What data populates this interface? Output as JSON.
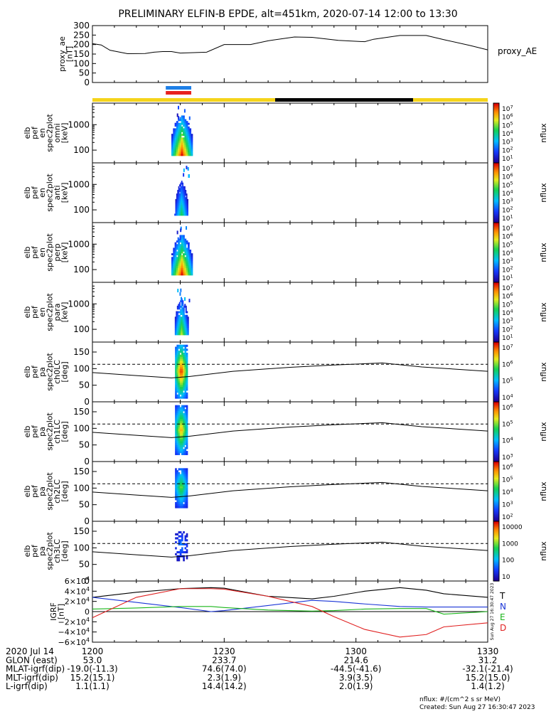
{
  "title": "PRELIMINARY ELFIN-B EPDE, alt=451km, 2020-07-14 12:00 to 13:30",
  "proxy_ae": {
    "ylabel": [
      "proxy_ae",
      "[nT]"
    ],
    "legend": "proxy_AE",
    "yticks": [
      "300",
      "250",
      "200",
      "150",
      "100",
      "50",
      "0"
    ],
    "ylim": [
      0,
      300
    ],
    "t": [
      0,
      2,
      4,
      8,
      12,
      14,
      16,
      18,
      20,
      26,
      30,
      32,
      36,
      40,
      46,
      50,
      56,
      62,
      64,
      70,
      76,
      80,
      86,
      90
    ],
    "v": [
      205,
      198,
      170,
      152,
      153,
      160,
      163,
      163,
      155,
      160,
      200,
      200,
      200,
      220,
      240,
      238,
      222,
      215,
      228,
      248,
      248,
      226,
      195,
      172
    ]
  },
  "science_zone_bars": [
    {
      "color": "#1e7fe6",
      "t0": 16.7,
      "t1": 22.5
    },
    {
      "color": "#e8231f",
      "t0": 16.7,
      "t1": 22.5
    }
  ],
  "sunlight_bar": [
    {
      "color": "#f5d41a",
      "t0": 0,
      "t1": 41.6
    },
    {
      "color": "#000000",
      "t0": 41.6,
      "t1": 73.0
    },
    {
      "color": "#f5d41a",
      "t0": 73.0,
      "t1": 90
    }
  ],
  "energy_panels": [
    {
      "ylabel": [
        "elb",
        "pef",
        "en",
        "spec2plot",
        "omni",
        "[keV]"
      ],
      "cb_label": "nflux",
      "cb_ticks": [
        "10^7",
        "10^6",
        "10^5",
        "10^4",
        "10^3",
        "10^2",
        "10^1"
      ],
      "yticks": [
        "1000",
        "100"
      ],
      "peak": 1.0,
      "width": 1.0
    },
    {
      "ylabel": [
        "elb",
        "pef",
        "en",
        "spec2plot",
        "anti",
        "[keV]"
      ],
      "cb_label": "nflux",
      "cb_ticks": [
        "10^7",
        "10^6",
        "10^5",
        "10^4",
        "10^3",
        "10^2",
        "10^1"
      ],
      "yticks": [
        "1000",
        "100"
      ],
      "peak": 0.55,
      "width": 0.6
    },
    {
      "ylabel": [
        "elb",
        "pef",
        "en",
        "spec2plot",
        "perp",
        "[keV]"
      ],
      "cb_label": "nflux",
      "cb_ticks": [
        "10^7",
        "10^6",
        "10^5",
        "10^4",
        "10^3",
        "10^2",
        "10^1"
      ],
      "yticks": [
        "1000",
        "100"
      ],
      "peak": 1.0,
      "width": 1.0
    },
    {
      "ylabel": [
        "elb",
        "pef",
        "en",
        "spec2plot",
        "para",
        "[keV]"
      ],
      "cb_label": "nflux",
      "cb_ticks": [
        "10^7",
        "10^6",
        "10^5",
        "10^4",
        "10^3",
        "10^2",
        "10^1"
      ],
      "yticks": [
        "1000",
        "100"
      ],
      "peak": 0.7,
      "width": 0.65
    }
  ],
  "pitch_panels": [
    {
      "ylabel": [
        "elb",
        "pef",
        "pa",
        "spec2plot",
        "ch0LC",
        "[deg]"
      ],
      "cb_label": "nflux",
      "cb_ticks": [
        "10^7",
        "10^6",
        "10^5",
        "10^4"
      ],
      "yticks": [
        "150",
        "100",
        "50",
        "0"
      ],
      "ylim": [
        0,
        180
      ],
      "extent": [
        10,
        170
      ],
      "peak": 1.0
    },
    {
      "ylabel": [
        "elb",
        "pef",
        "pa",
        "spec2plot",
        "ch1LC",
        "[deg]"
      ],
      "cb_label": "nflux",
      "cb_ticks": [
        "10^6",
        "10^5",
        "10^4",
        "10^3"
      ],
      "yticks": [
        "150",
        "100",
        "50",
        "0"
      ],
      "ylim": [
        0,
        180
      ],
      "extent": [
        20,
        165
      ],
      "peak": 0.85
    },
    {
      "ylabel": [
        "elb",
        "pef",
        "pa",
        "spec2plot",
        "ch2LC",
        "[deg]"
      ],
      "cb_label": "nflux",
      "cb_ticks": [
        "10^6",
        "10^5",
        "10^4",
        "10^3",
        "10^2"
      ],
      "yticks": [
        "150",
        "100",
        "50",
        "0"
      ],
      "ylim": [
        0,
        180
      ],
      "extent": [
        40,
        160
      ],
      "peak": 0.65
    },
    {
      "ylabel": [
        "elb",
        "pef",
        "pa",
        "spec2plot",
        "ch3LC",
        "[deg]"
      ],
      "cb_label": "nflux",
      "cb_ticks": [
        "10000",
        "1000",
        "100",
        "10"
      ],
      "yticks": [
        "150",
        "100",
        "50",
        "0"
      ],
      "ylim": [
        0,
        180
      ],
      "extent": [
        60,
        150
      ],
      "peak": 0.3
    }
  ],
  "loss_cone": {
    "t": [
      0,
      10,
      18,
      22,
      32,
      45,
      55,
      66,
      75,
      90
    ],
    "lc": [
      88,
      79,
      72,
      76,
      92,
      104,
      111,
      117,
      105,
      92
    ],
    "alc": 113
  },
  "igrf": {
    "ylabel": [
      "IGRF",
      "[nT]"
    ],
    "ylim": [
      -60000,
      60000
    ],
    "yticks": [
      "6×10^4",
      "4×10^4",
      "2×10^4",
      "0",
      "−2×10^4",
      "−4×10^4",
      "−6×10^4"
    ],
    "legend": [
      {
        "label": "T",
        "color": "#000000"
      },
      {
        "label": "N",
        "color": "#1a35d6"
      },
      {
        "label": "E",
        "color": "#19b519"
      },
      {
        "label": "D",
        "color": "#e02020"
      }
    ],
    "t": [
      0,
      10,
      20,
      27,
      30,
      40,
      50,
      55,
      62,
      70,
      76,
      80,
      90
    ],
    "T": [
      28000,
      38000,
      45000,
      47000,
      46000,
      30000,
      25000,
      30000,
      40000,
      47000,
      42000,
      35000,
      28000
    ],
    "N": [
      28000,
      18000,
      8000,
      0,
      2000,
      12000,
      22000,
      20000,
      15000,
      10000,
      9000,
      9000,
      9000
    ],
    "E": [
      5000,
      7000,
      10000,
      10000,
      8000,
      3000,
      1000,
      2000,
      5000,
      6000,
      6000,
      -5000,
      0
    ],
    "D": [
      -12000,
      28000,
      45000,
      45000,
      44000,
      30000,
      10000,
      -10000,
      -35000,
      -50000,
      -45000,
      -30000,
      -22000
    ],
    "side_stamp": "Sun Aug 27 16:30:47 2023"
  },
  "time_axis": {
    "ticks": [
      {
        "t": 0,
        "label": "1200"
      },
      {
        "t": 30,
        "label": "1230"
      },
      {
        "t": 60,
        "label": "1300"
      },
      {
        "t": 90,
        "label": "1330"
      }
    ]
  },
  "ephemeris": {
    "rows": [
      {
        "label": "2020 Jul 14",
        "values": [
          "1200",
          "1230",
          "1300",
          "1330"
        ]
      },
      {
        "label": "GLON (east)",
        "values": [
          "53.0",
          "233.7",
          "214.6",
          "31.2"
        ]
      },
      {
        "label": "MLAT-igrf(dip)",
        "values": [
          "-19.0(-11.3)",
          "74.6(74.0)",
          "-44.5(-41.6)",
          "-32.1(-21.4)"
        ]
      },
      {
        "label": "MLT-igrf(dip)",
        "values": [
          "15.2(15.1)",
          "2.3(1.9)",
          "3.9(3.5)",
          "15.2(15.0)"
        ]
      },
      {
        "label": "L-igrf(dip)",
        "values": [
          "1.1(1.1)",
          "14.4(14.2)",
          "2.0(1.9)",
          "1.4(1.2)"
        ]
      }
    ]
  },
  "footer": {
    "units": "nflux: #/(cm^2 s sr MeV)",
    "created": "Created: Sun Aug 27 16:30:47 2023"
  },
  "chart_data": [
    {
      "type": "line",
      "title": "PRELIMINARY ELFIN-B EPDE, alt=451km, 2020-07-14 12:00 to 13:30",
      "ylabel": "proxy_ae [nT]",
      "ylim": [
        0,
        300
      ],
      "series": [
        {
          "name": "proxy_AE",
          "x_minutes_after_1200": [
            0,
            2,
            4,
            8,
            12,
            14,
            16,
            18,
            20,
            26,
            30,
            32,
            36,
            40,
            46,
            50,
            56,
            62,
            64,
            70,
            76,
            80,
            86,
            90
          ],
          "values": [
            205,
            198,
            170,
            152,
            153,
            160,
            163,
            163,
            155,
            160,
            200,
            200,
            200,
            220,
            240,
            238,
            222,
            215,
            228,
            248,
            248,
            226,
            195,
            172
          ]
        }
      ]
    },
    {
      "type": "heatmap",
      "ylabel": "elb pef en spec2plot omni [keV]",
      "colorbar": "nflux",
      "scale": "log"
    },
    {
      "type": "heatmap",
      "ylabel": "elb pef en spec2plot anti [keV]",
      "colorbar": "nflux",
      "scale": "log"
    },
    {
      "type": "heatmap",
      "ylabel": "elb pef en spec2plot perp [keV]",
      "colorbar": "nflux",
      "scale": "log"
    },
    {
      "type": "heatmap",
      "ylabel": "elb pef en spec2plot para [keV]",
      "colorbar": "nflux",
      "scale": "log"
    },
    {
      "type": "heatmap",
      "ylabel": "elb pef pa spec2plot ch0LC [deg]",
      "colorbar": "nflux",
      "ylim": [
        0,
        180
      ]
    },
    {
      "type": "heatmap",
      "ylabel": "elb pef pa spec2plot ch1LC [deg]",
      "colorbar": "nflux",
      "ylim": [
        0,
        180
      ]
    },
    {
      "type": "heatmap",
      "ylabel": "elb pef pa spec2plot ch2LC [deg]",
      "colorbar": "nflux",
      "ylim": [
        0,
        180
      ]
    },
    {
      "type": "heatmap",
      "ylabel": "elb pef pa spec2plot ch3LC [deg]",
      "colorbar": "nflux",
      "ylim": [
        0,
        180
      ]
    },
    {
      "type": "line",
      "ylabel": "IGRF [nT]",
      "ylim": [
        -60000,
        60000
      ],
      "series": [
        {
          "name": "T",
          "x_minutes_after_1200": [
            0,
            10,
            20,
            27,
            30,
            40,
            50,
            55,
            62,
            70,
            76,
            80,
            90
          ],
          "values": [
            28000,
            38000,
            45000,
            47000,
            46000,
            30000,
            25000,
            30000,
            40000,
            47000,
            42000,
            35000,
            28000
          ]
        },
        {
          "name": "N",
          "x_minutes_after_1200": [
            0,
            10,
            20,
            27,
            30,
            40,
            50,
            55,
            62,
            70,
            76,
            80,
            90
          ],
          "values": [
            28000,
            18000,
            8000,
            0,
            2000,
            12000,
            22000,
            20000,
            15000,
            10000,
            9000,
            9000,
            9000
          ]
        },
        {
          "name": "E",
          "x_minutes_after_1200": [
            0,
            10,
            20,
            27,
            30,
            40,
            50,
            55,
            62,
            70,
            76,
            80,
            90
          ],
          "values": [
            5000,
            7000,
            10000,
            10000,
            8000,
            3000,
            1000,
            2000,
            5000,
            6000,
            6000,
            -5000,
            0
          ]
        },
        {
          "name": "D",
          "x_minutes_after_1200": [
            0,
            10,
            20,
            27,
            30,
            40,
            50,
            55,
            62,
            70,
            76,
            80,
            90
          ],
          "values": [
            -12000,
            28000,
            45000,
            45000,
            44000,
            30000,
            10000,
            -10000,
            -35000,
            -50000,
            -45000,
            -30000,
            -22000
          ]
        }
      ]
    }
  ]
}
